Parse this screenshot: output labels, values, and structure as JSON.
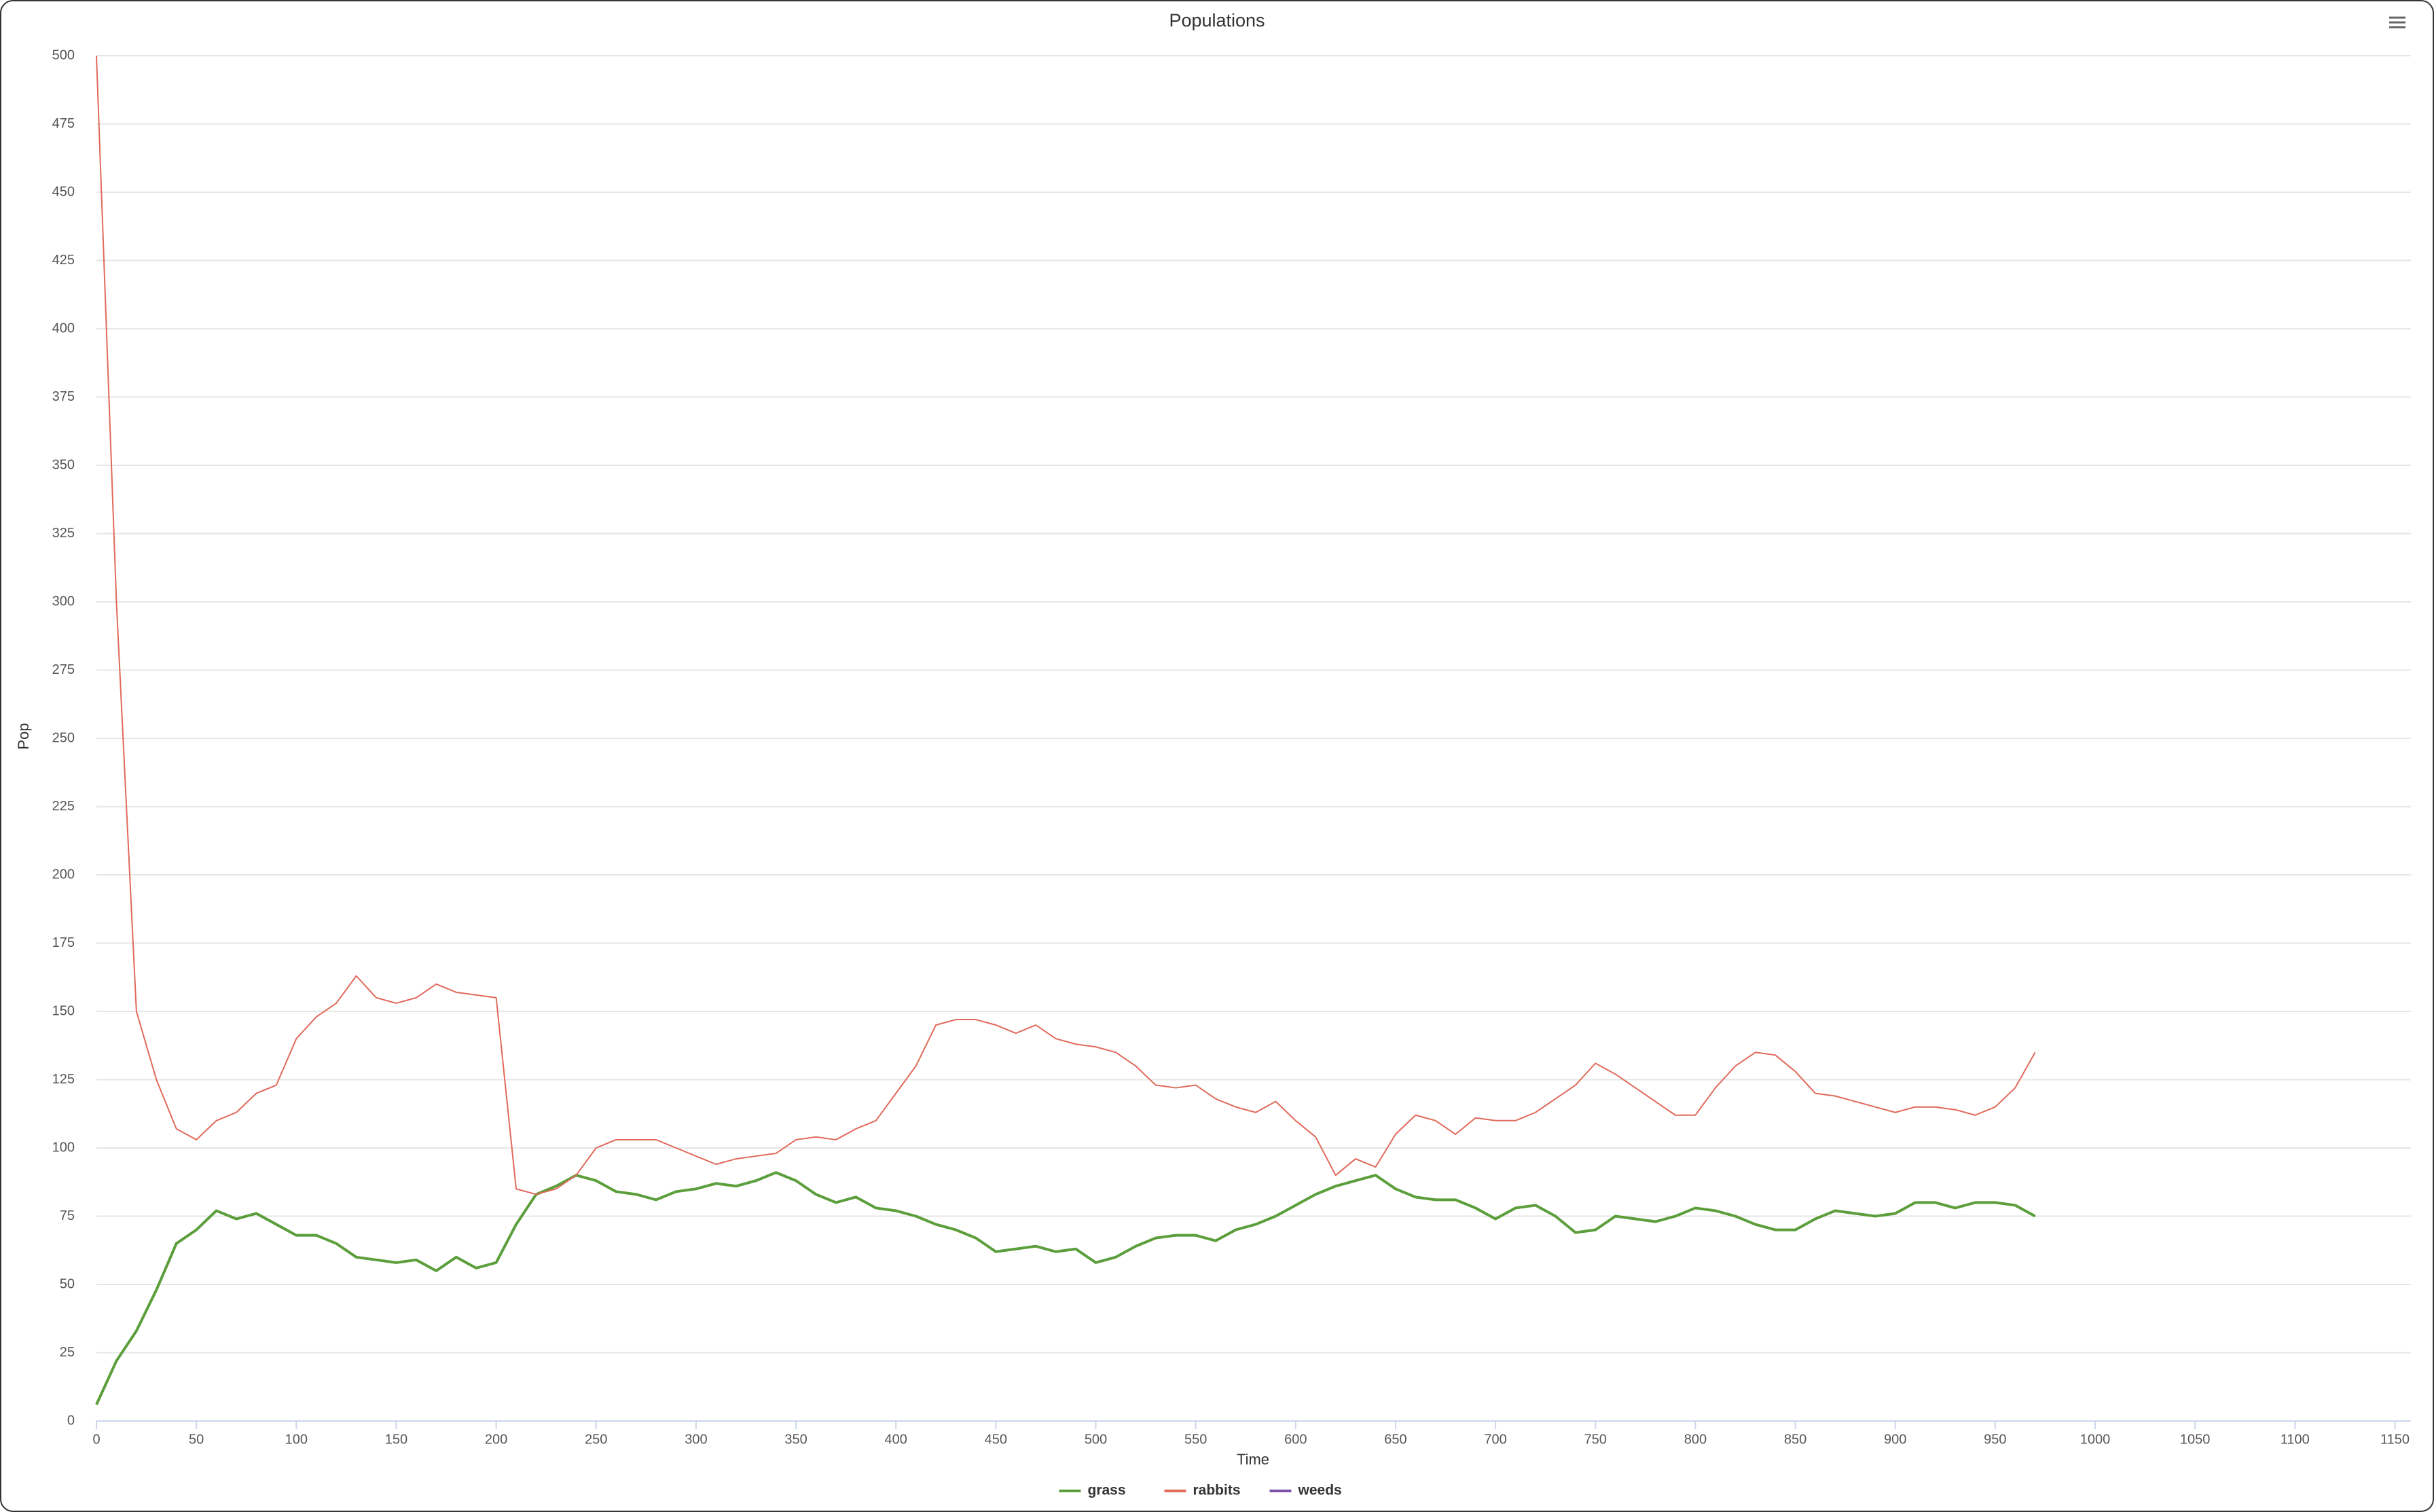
{
  "chart_data": {
    "type": "line",
    "title": "Populations",
    "x_label": "Time",
    "y_label": "Pop",
    "x": [
      0,
      10,
      20,
      30,
      40,
      50,
      60,
      70,
      80,
      90,
      100,
      110,
      120,
      130,
      140,
      150,
      160,
      170,
      180,
      190,
      200,
      210,
      220,
      230,
      240,
      250,
      260,
      270,
      280,
      290,
      300,
      310,
      320,
      330,
      340,
      350,
      360,
      370,
      380,
      390,
      400,
      410,
      420,
      430,
      440,
      450,
      460,
      470,
      480,
      490,
      500,
      510,
      520,
      530,
      540,
      550,
      560,
      570,
      580,
      590,
      600,
      610,
      620,
      630,
      640,
      650,
      660,
      670,
      680,
      690,
      700,
      710,
      720,
      730,
      740,
      750,
      760,
      770,
      780,
      790,
      800,
      810,
      820,
      830,
      840,
      850,
      860,
      870,
      880,
      890,
      900,
      910,
      920,
      930,
      940,
      950,
      960,
      970
    ],
    "series": [
      {
        "name": "grass",
        "color": "#5b9e3b",
        "values": [
          6,
          22,
          33,
          48,
          65,
          70,
          77,
          74,
          76,
          72,
          68,
          68,
          65,
          60,
          59,
          58,
          59,
          55,
          60,
          56,
          58,
          72,
          83,
          86,
          90,
          88,
          84,
          83,
          81,
          84,
          85,
          87,
          86,
          88,
          91,
          88,
          83,
          80,
          82,
          78,
          77,
          75,
          72,
          70,
          67,
          62,
          63,
          64,
          62,
          63,
          58,
          60,
          64,
          67,
          68,
          68,
          66,
          70,
          72,
          75,
          79,
          83,
          86,
          88,
          90,
          85,
          82,
          81,
          81,
          78,
          74,
          78,
          79,
          75,
          69,
          70,
          75,
          74,
          73,
          75,
          78,
          77,
          75,
          72,
          70,
          70,
          74,
          77,
          76,
          75,
          76,
          80,
          80,
          78,
          80,
          80,
          79,
          75
        ]
      },
      {
        "name": "rabbits",
        "color": "#e06a5a",
        "values": [
          500,
          300,
          150,
          125,
          107,
          103,
          110,
          113,
          120,
          123,
          140,
          148,
          153,
          163,
          155,
          153,
          155,
          160,
          157,
          156,
          155,
          85,
          83,
          85,
          90,
          100,
          103,
          103,
          103,
          100,
          97,
          94,
          96,
          97,
          98,
          103,
          104,
          103,
          107,
          110,
          120,
          130,
          145,
          147,
          147,
          145,
          142,
          145,
          140,
          138,
          137,
          135,
          130,
          123,
          122,
          123,
          118,
          115,
          113,
          117,
          110,
          104,
          90,
          96,
          93,
          105,
          112,
          110,
          105,
          111,
          110,
          110,
          113,
          118,
          123,
          131,
          127,
          122,
          117,
          112,
          112,
          122,
          130,
          135,
          134,
          128,
          120,
          119,
          117,
          115,
          113,
          115,
          115,
          114,
          112,
          115,
          122,
          135
        ]
      },
      {
        "name": "weeds",
        "color": "#7b52a8",
        "values": [
          null,
          null,
          null,
          null,
          null,
          null,
          null,
          null,
          null,
          null,
          null,
          null,
          null,
          null,
          null,
          null,
          null,
          null,
          null,
          null,
          null,
          null,
          null,
          null,
          null,
          null,
          null,
          null,
          null,
          null,
          null,
          null,
          null,
          null,
          null,
          null,
          null,
          null,
          null,
          null,
          null,
          null,
          null,
          null,
          null,
          null,
          null,
          null,
          null,
          null,
          null,
          null,
          null,
          null,
          null,
          null,
          null,
          null,
          null,
          null,
          null,
          null,
          null,
          null,
          null,
          null,
          null,
          null,
          null,
          null,
          null,
          null,
          null,
          null,
          null,
          null,
          null,
          null,
          null,
          null,
          null,
          null,
          null,
          null,
          null,
          null,
          null,
          null,
          null,
          null,
          null,
          null,
          null,
          null,
          null,
          null,
          null,
          null
        ]
      }
    ],
    "xlim": [
      0,
      1158
    ],
    "xticks": [
      0,
      50,
      100,
      150,
      200,
      250,
      300,
      350,
      400,
      450,
      500,
      550,
      600,
      650,
      700,
      750,
      800,
      850,
      900,
      950,
      1000,
      1050,
      1100,
      1150
    ],
    "ylim": [
      0,
      500
    ],
    "yticks": [
      0,
      25,
      50,
      75,
      100,
      125,
      150,
      175,
      200,
      225,
      250,
      275,
      300,
      325,
      350,
      375,
      400,
      425,
      450,
      475,
      500
    ],
    "grid": true,
    "legend": "bottom"
  }
}
